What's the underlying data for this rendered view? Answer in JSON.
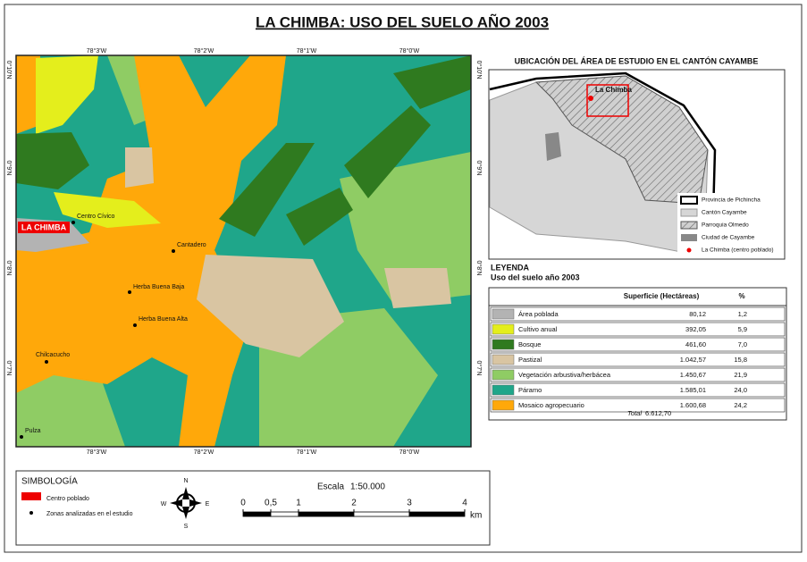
{
  "title": "LA CHIMBA: USO DEL SUELO AÑO 2003",
  "map": {
    "top_labels": [
      "78°3'W",
      "78°2'W",
      "78°1'W",
      "78°0'W"
    ],
    "bottom_labels": [
      "78°3'W",
      "78°2'W",
      "78°1'W",
      "78°0'W"
    ],
    "left_labels": [
      "0°10'N",
      "0°9'N",
      "0°8'N",
      "0°7'N"
    ],
    "right_labels": [
      "0°10'N",
      "0°9'N",
      "0°8'N",
      "0°7'N"
    ],
    "places": [
      "LA CHIMBA",
      "Centro Cívico",
      "Cantadero",
      "Herba Buena Baja",
      "Herba Buena Alta",
      "Chilcacucho",
      "Pulza"
    ]
  },
  "inset": {
    "title": "UBICACIÓN DEL ÁREA DE ESTUDIO EN EL CANTÓN CAYAMBE",
    "label": "La Chimba",
    "legend": [
      "Provincia de Pichincha",
      "Cantón Cayambe",
      "Parroquia Olmedo",
      "Ciudad de Cayambe",
      "La Chimba (centro poblado)"
    ]
  },
  "legend": {
    "title": "LEYENDA",
    "subtitle": "Uso del suelo año 2003",
    "header": [
      "Superficie (Hectáreas)",
      "%"
    ],
    "rows": [
      {
        "name": "Área poblada",
        "area": "80,12",
        "percent": "1,2",
        "color": "#b3b3b3"
      },
      {
        "name": "Cultivo anual",
        "area": "392,05",
        "percent": "5,9",
        "color": "#e4ee1c"
      },
      {
        "name": "Bosque",
        "area": "461,60",
        "percent": "7,0",
        "color": "#2f7a1f"
      },
      {
        "name": "Pastizal",
        "area": "1.042,57",
        "percent": "15,8",
        "color": "#d9c5a2"
      },
      {
        "name": "Vegetación arbustiva/herbácea",
        "area": "1.450,67",
        "percent": "21,9",
        "color": "#8fcc64"
      },
      {
        "name": "Páramo",
        "area": "1.585,01",
        "percent": "24,0",
        "color": "#1fa68a"
      },
      {
        "name": "Mosaico agropecuario",
        "area": "1.600,68",
        "percent": "24,2",
        "color": "#ffa80a"
      }
    ],
    "total": {
      "label": "Total",
      "area": "6.612,70"
    }
  },
  "symbology": {
    "title": "SIMBOLOGÍA",
    "items": [
      "Centro poblado",
      "Zonas analizadas en el estudio"
    ],
    "compass": [
      "N",
      "E",
      "S",
      "W"
    ],
    "scale_label": "Escala",
    "scale": "1:50.000",
    "scale_ticks": [
      0,
      {
        "value": 0.5,
        "label": "0,5"
      },
      1,
      2,
      3,
      4
    ],
    "unit": "km"
  }
}
